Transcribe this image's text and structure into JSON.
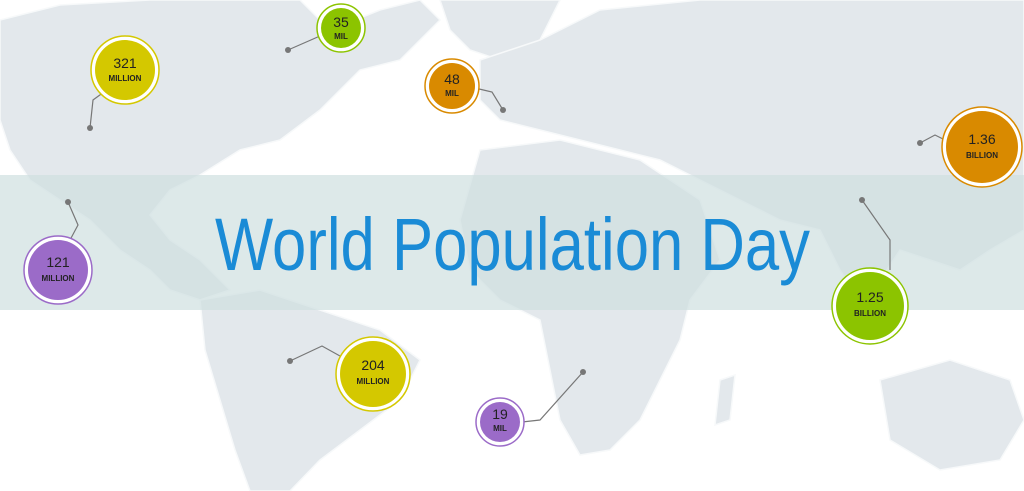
{
  "title": "World Population Day",
  "markers": [
    {
      "value": "321",
      "unit": "MILLION"
    },
    {
      "value": "35",
      "unit": "MIL"
    },
    {
      "value": "48",
      "unit": "MIL"
    },
    {
      "value": "1.36",
      "unit": "BILLION"
    },
    {
      "value": "121",
      "unit": "MILLION"
    },
    {
      "value": "1.25",
      "unit": "BILLION"
    },
    {
      "value": "204",
      "unit": "MILLION"
    },
    {
      "value": "19",
      "unit": "MIL"
    }
  ]
}
